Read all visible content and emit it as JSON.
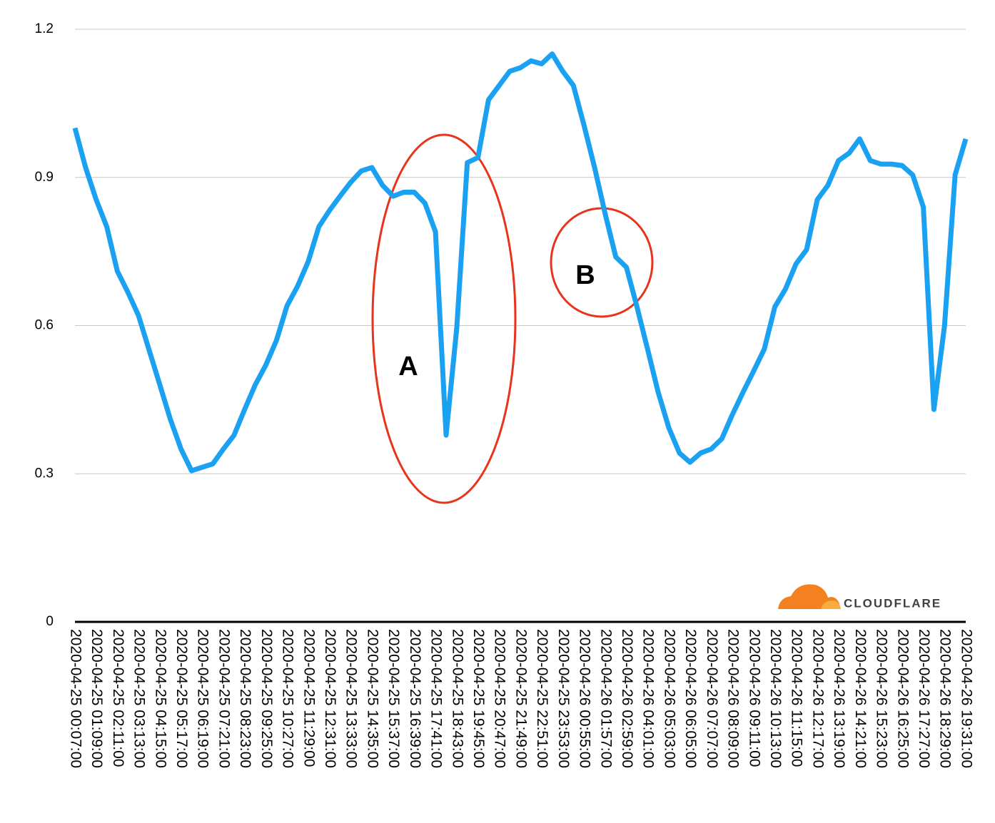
{
  "chart_data": {
    "type": "line",
    "categories": [
      "2020-04-25 00:07:00",
      null,
      "2020-04-25 01:09:00",
      null,
      "2020-04-25 02:11:00",
      null,
      "2020-04-25 03:13:00",
      null,
      "2020-04-25 04:15:00",
      null,
      "2020-04-25 05:17:00",
      null,
      "2020-04-25 06:19:00",
      null,
      "2020-04-25 07:21:00",
      null,
      "2020-04-25 08:23:00",
      null,
      "2020-04-25 09:25:00",
      null,
      "2020-04-25 10:27:00",
      null,
      "2020-04-25 11:29:00",
      null,
      "2020-04-25 12:31:00",
      null,
      "2020-04-25 13:33:00",
      null,
      "2020-04-25 14:35:00",
      null,
      "2020-04-25 15:37:00",
      null,
      "2020-04-25 16:39:00",
      null,
      "2020-04-25 17:41:00",
      null,
      "2020-04-25 18:43:00",
      null,
      "2020-04-25 19:45:00",
      null,
      "2020-04-25 20:47:00",
      null,
      "2020-04-25 21:49:00",
      null,
      "2020-04-25 22:51:00",
      null,
      "2020-04-25 23:53:00",
      null,
      "2020-04-26 00:55:00",
      null,
      "2020-04-26 01:57:00",
      null,
      "2020-04-26 02:59:00",
      null,
      "2020-04-26 04:01:00",
      null,
      "2020-04-26 05:03:00",
      null,
      "2020-04-26 06:05:00",
      null,
      "2020-04-26 07:07:00",
      null,
      "2020-04-26 08:09:00",
      null,
      "2020-04-26 09:11:00",
      null,
      "2020-04-26 10:13:00",
      null,
      "2020-04-26 11:15:00",
      null,
      "2020-04-26 12:17:00",
      null,
      "2020-04-26 13:19:00",
      null,
      "2020-04-26 14:21:00",
      null,
      "2020-04-26 15:23:00",
      null,
      "2020-04-26 16:25:00",
      null,
      "2020-04-26 17:27:00",
      null,
      "2020-04-26 18:29:00",
      null,
      "2020-04-26 19:31:00"
    ],
    "values": [
      1.0,
      0.92,
      0.855,
      0.8,
      0.71,
      0.667,
      0.62,
      0.55,
      0.48,
      0.41,
      0.35,
      0.306,
      0.313,
      0.32,
      0.35,
      0.378,
      0.43,
      0.48,
      0.52,
      0.57,
      0.64,
      0.68,
      0.73,
      0.8,
      0.833,
      0.862,
      0.89,
      0.913,
      0.92,
      0.884,
      0.862,
      0.87,
      0.87,
      0.848,
      0.79,
      0.378,
      0.595,
      0.93,
      0.94,
      1.057,
      1.086,
      1.115,
      1.122,
      1.136,
      1.13,
      1.15,
      1.115,
      1.086,
      1.006,
      0.92,
      0.826,
      0.739,
      0.718,
      0.638,
      0.552,
      0.465,
      0.393,
      0.342,
      0.323,
      0.342,
      0.35,
      0.371,
      0.42,
      0.465,
      0.508,
      0.552,
      0.638,
      0.674,
      0.725,
      0.754,
      0.855,
      0.884,
      0.934,
      0.949,
      0.978,
      0.934,
      0.927,
      0.927,
      0.924,
      0.905,
      0.84,
      0.43,
      0.6,
      0.905,
      0.978
    ],
    "color": "#1ba1f2",
    "ylim": [
      0,
      1.2
    ],
    "yticks": [
      0,
      0.3,
      0.6,
      0.9,
      1.2
    ],
    "grid": true,
    "annotations": [
      "A",
      "B"
    ],
    "logo_text": "CLOUDFLARE"
  }
}
